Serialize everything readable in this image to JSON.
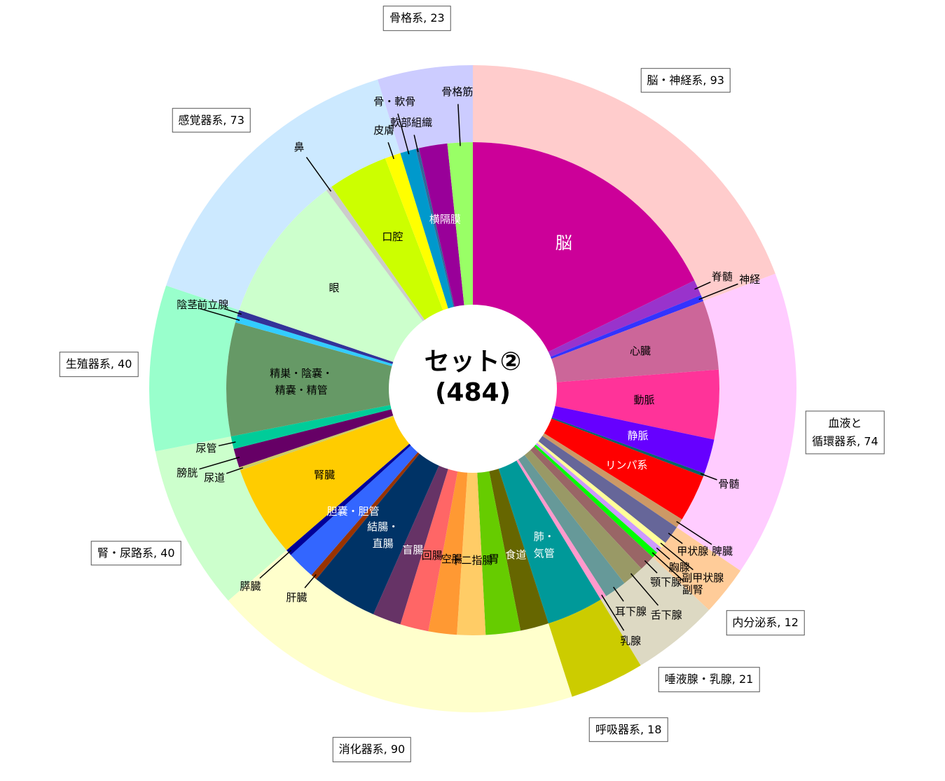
{
  "chart_data": {
    "type": "sunburst",
    "center_label": "セット②",
    "total": {
      "value": 484,
      "label": "(484)"
    },
    "groups": [
      {
        "name": "脳・神経系",
        "value": 93,
        "color": "#ffcccc",
        "children": [
          {
            "name": "脳",
            "value": 86,
            "color": "#cc0099"
          },
          {
            "name": "脊髄",
            "value": 5,
            "color": "#9933cc"
          },
          {
            "name": "神経",
            "value": 2,
            "color": "#3333ff"
          }
        ]
      },
      {
        "name": "血液と\n循環器系",
        "value": 74,
        "color": "#ffccff",
        "children": [
          {
            "name": "心臓",
            "value": 22,
            "color": "#cc6699"
          },
          {
            "name": "動脈",
            "value": 22,
            "color": "#ff3399"
          },
          {
            "name": "静脈",
            "value": 11,
            "color": "#6600ff"
          },
          {
            "name": "骨髄",
            "value": 1,
            "color": "#006666"
          },
          {
            "name": "リンパ系",
            "value": 15,
            "color": "#ff0000"
          },
          {
            "name": "脾臓",
            "value": 3,
            "color": "#cc9966"
          }
        ]
      },
      {
        "name": "内分泌系",
        "value": 12,
        "color": "#ffcc99",
        "children": [
          {
            "name": "甲状腺",
            "value": 6,
            "color": "#666699"
          },
          {
            "name": "副甲状腺",
            "value": 2,
            "color": "#ffff99"
          },
          {
            "name": "胸腺",
            "value": 2,
            "color": "#cc99ff"
          },
          {
            "name": "副腎",
            "value": 2,
            "color": "#00ff00"
          }
        ]
      },
      {
        "name": "唾液腺・乳腺",
        "value": 21,
        "color": "#ddd9c3",
        "children": [
          {
            "name": "顎下腺",
            "value": 5,
            "color": "#996666"
          },
          {
            "name": "舌下腺",
            "value": 7,
            "color": "#999966"
          },
          {
            "name": "耳下腺",
            "value": 7,
            "color": "#669999"
          },
          {
            "name": "乳腺",
            "value": 2,
            "color": "#ff99cc"
          }
        ]
      },
      {
        "name": "呼吸器系",
        "value": 18,
        "color": "#cccc00",
        "children": [
          {
            "name": "肺・\n気管",
            "value": 18,
            "color": "#009999"
          }
        ]
      },
      {
        "name": "消化器系",
        "value": 90,
        "color": "#ffffcc",
        "children": [
          {
            "name": "食道",
            "value": 9,
            "color": "#666600"
          },
          {
            "name": "胃",
            "value": 11,
            "color": "#66cc00"
          },
          {
            "name": "十二指腸",
            "value": 9,
            "color": "#ffcc66"
          },
          {
            "name": "空腸",
            "value": 9,
            "color": "#ff9933"
          },
          {
            "name": "回腸",
            "value": 9,
            "color": "#ff6666"
          },
          {
            "name": "盲腸",
            "value": 9,
            "color": "#663366"
          },
          {
            "name": "結腸・\n直腸",
            "value": 21,
            "color": "#003366"
          },
          {
            "name": "肝臓",
            "value": 2,
            "color": "#993300"
          },
          {
            "name": "胆嚢・胆管",
            "value": 9,
            "color": "#3366ff"
          },
          {
            "name": "膵臓",
            "value": 2,
            "color": "#000099"
          }
        ]
      },
      {
        "name": "腎・尿路系",
        "value": 40,
        "color": "#ccffcc",
        "children": [
          {
            "name": "腎臓",
            "value": 29,
            "color": "#ffcc00"
          },
          {
            "name": "尿道",
            "value": 1,
            "color": "#cccc66"
          },
          {
            "name": "膀胱",
            "value": 6,
            "color": "#660066"
          },
          {
            "name": "尿管",
            "value": 4,
            "color": "#00cc99"
          }
        ]
      },
      {
        "name": "生殖器系",
        "value": 40,
        "color": "#99ffcc",
        "children": [
          {
            "name": "精巣・陰嚢・\n精嚢・精管",
            "value": 36,
            "color": "#669966"
          },
          {
            "name": "陰茎",
            "value": 2,
            "color": "#33ccff"
          },
          {
            "name": "前立腺",
            "value": 2,
            "color": "#333399"
          }
        ]
      },
      {
        "name": "感覚器系",
        "value": 73,
        "color": "#cce9ff",
        "children": [
          {
            "name": "眼",
            "value": 47,
            "color": "#ccffcc"
          },
          {
            "name": "鼻",
            "value": 2,
            "color": "#cccccc"
          },
          {
            "name": "口腔",
            "value": 19,
            "color": "#ccff00"
          },
          {
            "name": "皮膚",
            "value": 5,
            "color": "#ffff00"
          }
        ]
      },
      {
        "name": "骨格系",
        "value": 23,
        "color": "#ccccff",
        "children": [
          {
            "name": "骨・軟骨",
            "value": 5,
            "color": "#0099cc"
          },
          {
            "name": "軟部組織",
            "value": 1,
            "color": "#336699"
          },
          {
            "name": "横隔膜",
            "value": 9,
            "color": "#990099"
          },
          {
            "name": "骨格筋",
            "value": 8,
            "color": "#99ff66"
          }
        ]
      }
    ]
  }
}
